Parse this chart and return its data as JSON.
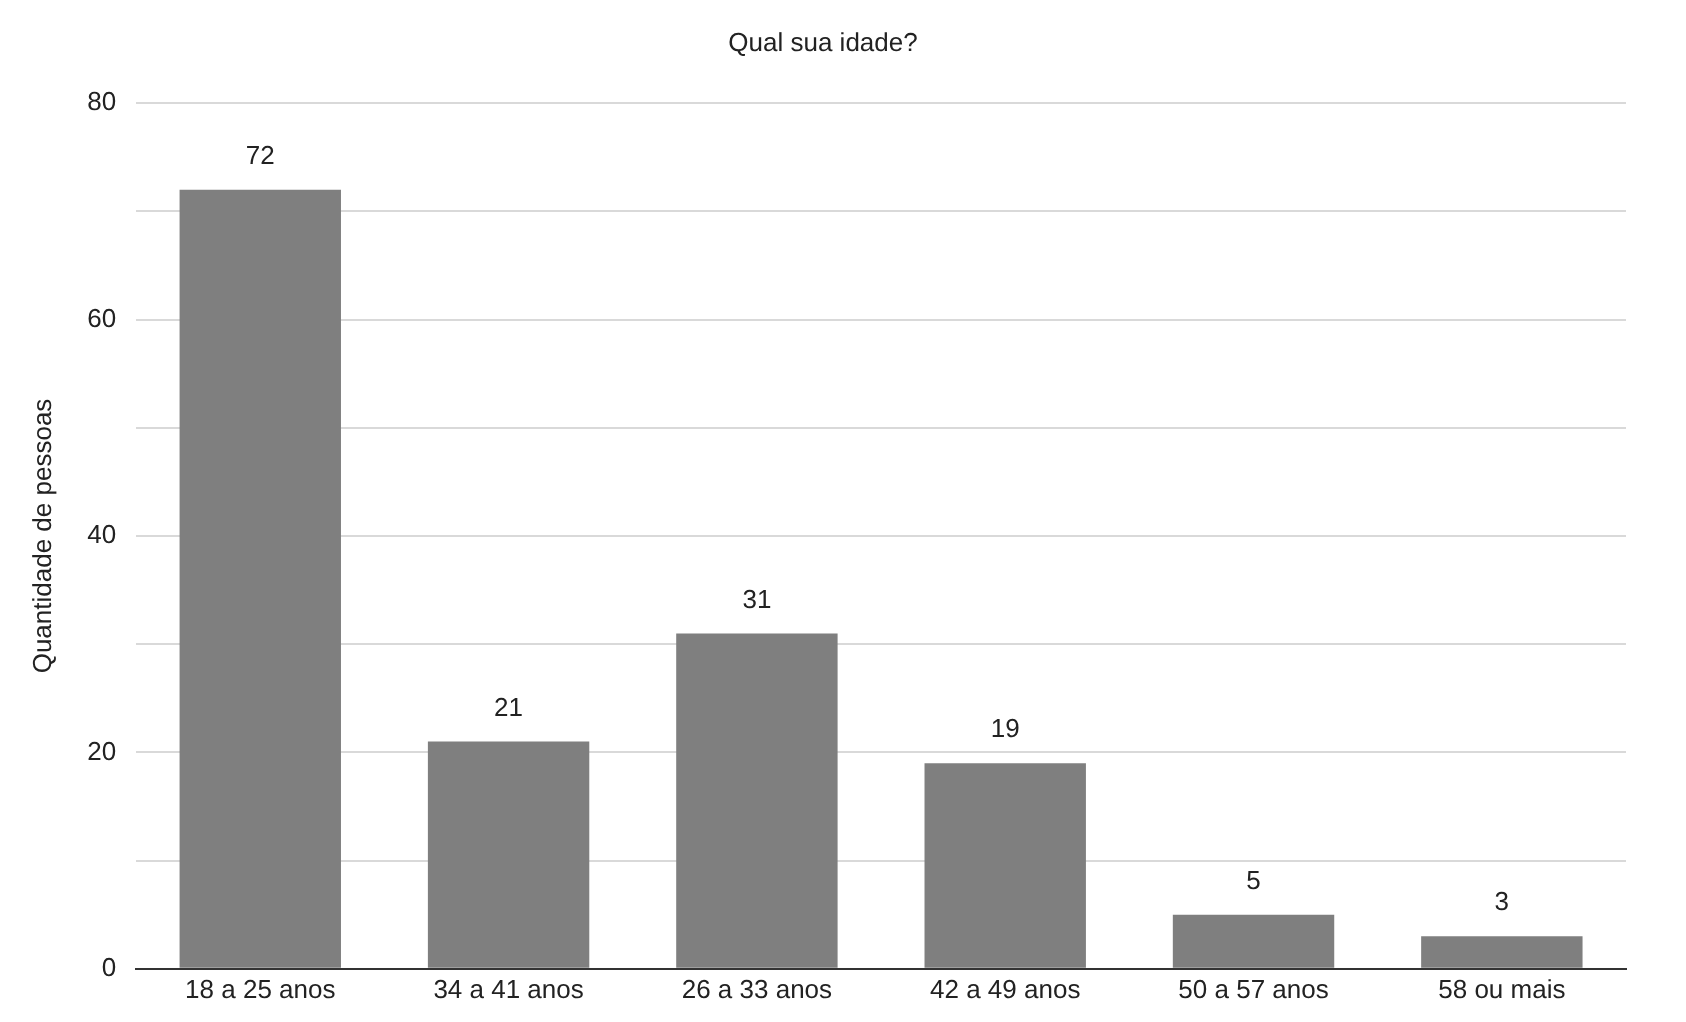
{
  "chart_data": {
    "type": "bar",
    "title": "Qual sua idade?",
    "ylabel": "Quantidade de pessoas",
    "categories": [
      "18 a 25 anos",
      "34 a 41 anos",
      "26 a 33 anos",
      "42 a 49 anos",
      "50 a 57 anos",
      "58 ou mais"
    ],
    "values": [
      72,
      21,
      31,
      19,
      5,
      3
    ],
    "color": "#7f7f7f",
    "ylim": [
      0,
      80
    ],
    "yticks": [
      0,
      {
        "value": 10,
        "label": null
      },
      20,
      {
        "value": 30,
        "label": null
      },
      40,
      {
        "value": 50,
        "label": null
      },
      60,
      {
        "value": 70,
        "label": null
      },
      80
    ],
    "grid": "y",
    "data_labels": true,
    "legend": false
  }
}
